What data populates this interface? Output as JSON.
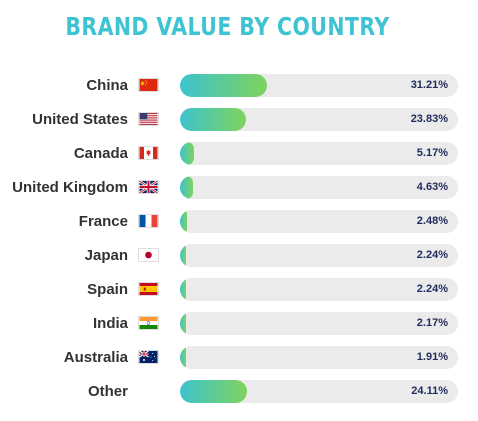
{
  "chart_data": {
    "type": "bar",
    "title": "BRAND VALUE BY COUNTRY",
    "orientation": "horizontal",
    "xlim": [
      0,
      100
    ],
    "categories": [
      "China",
      "United States",
      "Canada",
      "United Kingdom",
      "France",
      "Japan",
      "Spain",
      "India",
      "Australia",
      "Other"
    ],
    "values": [
      31.21,
      23.83,
      5.17,
      4.63,
      2.48,
      2.24,
      2.24,
      2.17,
      1.91,
      24.11
    ],
    "value_labels": [
      "31.21%",
      "23.83%",
      "5.17%",
      "4.63%",
      "2.48%",
      "2.24%",
      "2.24%",
      "2.17%",
      "1.91%",
      "24.11%"
    ],
    "flag_icons": [
      "china-flag-icon",
      "usa-flag-icon",
      "canada-flag-icon",
      "uk-flag-icon",
      "france-flag-icon",
      "japan-flag-icon",
      "spain-flag-icon",
      "india-flag-icon",
      "australia-flag-icon",
      ""
    ],
    "colors": {
      "title": "#3ec3d3",
      "bar_start": "#3cc3cf",
      "bar_end": "#7fd35c",
      "track": "#ebebeb",
      "value_text": "#1f2b5c",
      "label_text": "#333333"
    }
  }
}
